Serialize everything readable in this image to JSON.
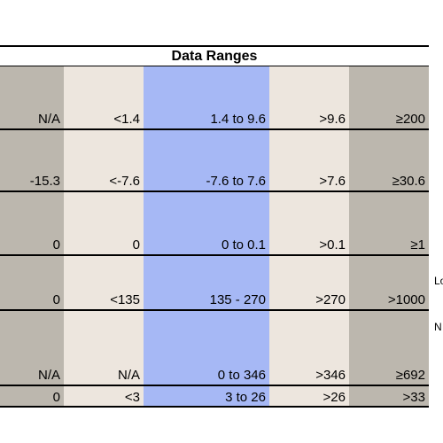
{
  "title": "Data Ranges",
  "rows": [
    [
      "N/A",
      "<1.4",
      "1.4 to 9.6",
      ">9.6",
      "≥200"
    ],
    [
      "-15.3",
      "<-7.6",
      "-7.6 to 7.6",
      ">7.6",
      "≥30.6"
    ],
    [
      "0",
      "0",
      "0 to 0.1",
      ">0.1",
      "≥1"
    ],
    [
      "0",
      "<135",
      "135 - 270",
      ">270",
      ">1000"
    ],
    [
      "N/A",
      "N/A",
      "0 to 346",
      ">346",
      "≥692"
    ],
    [
      "0",
      "<3",
      "3 to 26",
      ">26",
      ">33"
    ]
  ],
  "side_text": [
    "Lo",
    "N"
  ],
  "colors": {
    "gray": "#bcb7ae",
    "beige": "#ede6de",
    "blue": "#a6b8f5"
  }
}
